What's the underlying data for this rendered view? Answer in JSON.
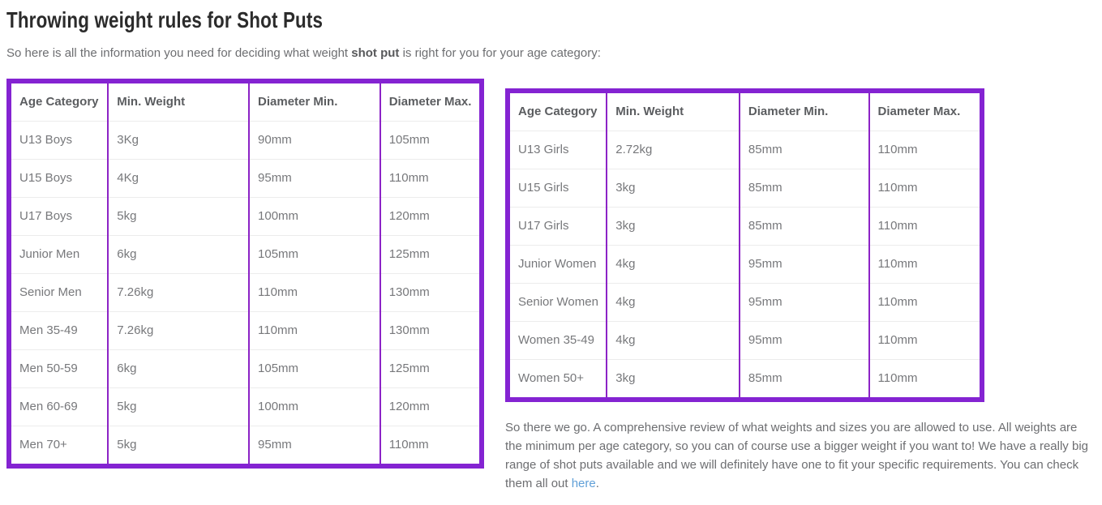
{
  "page": {
    "title": "Throwing weight rules for Shot Puts"
  },
  "intro": {
    "prefix": "So here is all the information you need for deciding what weight ",
    "bold": "shot put",
    "suffix": " is right for you for your age category:"
  },
  "colors": {
    "table_border_purple": "#8423d2",
    "row_divider_gray": "#ececec",
    "link_blue": "#61a0d8"
  },
  "tables": {
    "men": {
      "headers": [
        "Age Category",
        "Min. Weight",
        "Diameter Min.",
        "Diameter Max."
      ],
      "rows": [
        [
          "U13 Boys",
          "3Kg",
          "90mm",
          "105mm"
        ],
        [
          "U15 Boys",
          "4Kg",
          "95mm",
          "110mm"
        ],
        [
          "U17 Boys",
          "5kg",
          "100mm",
          "120mm"
        ],
        [
          "Junior Men",
          "6kg",
          "105mm",
          "125mm"
        ],
        [
          "Senior Men",
          "7.26kg",
          "110mm",
          "130mm"
        ],
        [
          "Men 35-49",
          "7.26kg",
          "110mm",
          "130mm"
        ],
        [
          "Men 50-59",
          "6kg",
          "105mm",
          "125mm"
        ],
        [
          "Men 60-69",
          "5kg",
          "100mm",
          "120mm"
        ],
        [
          "Men 70+",
          "5kg",
          "95mm",
          "110mm"
        ]
      ]
    },
    "women": {
      "headers": [
        "Age Category",
        "Min. Weight",
        "Diameter Min.",
        "Diameter Max."
      ],
      "rows": [
        [
          "U13 Girls",
          "2.72kg",
          "85mm",
          "110mm"
        ],
        [
          "U15 Girls",
          "3kg",
          "85mm",
          "110mm"
        ],
        [
          "U17 Girls",
          "3kg",
          "85mm",
          "110mm"
        ],
        [
          "Junior Women",
          "4kg",
          "95mm",
          "110mm"
        ],
        [
          "Senior Women",
          "4kg",
          "95mm",
          "110mm"
        ],
        [
          "Women 35-49",
          "4kg",
          "95mm",
          "110mm"
        ],
        [
          "Women 50+",
          "3kg",
          "85mm",
          "110mm"
        ]
      ]
    }
  },
  "outro": {
    "before_link": "So there we go. A comprehensive review of what weights and sizes you are allowed to use. All weights are the minimum per age category, so you can of course use a bigger weight if you want to! We have a really big range of shot puts available and we will definitely have one to fit your specific requirements. You can check them all out ",
    "link_label": "here",
    "after_link": "."
  }
}
